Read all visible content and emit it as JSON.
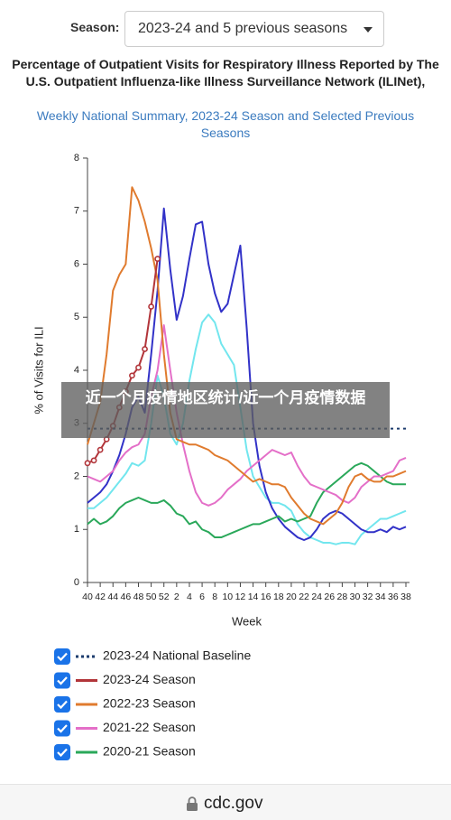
{
  "selector": {
    "label": "Season:",
    "value": "2023-24 and 5 previous seasons"
  },
  "chart_data": {
    "type": "line",
    "title": "Percentage of Outpatient Visits for Respiratory Illness Reported by The U.S. Outpatient Influenza-like Illness Surveillance Network (ILINet),",
    "subtitle": "Weekly National Summary, 2023-24 Season and Selected Previous Seasons",
    "x_label": "Week",
    "y_label": "% of Visits for ILI",
    "categories": [
      "40",
      null,
      "42",
      null,
      "44",
      null,
      "46",
      null,
      "48",
      null,
      "50",
      null,
      "52",
      null,
      "2",
      null,
      "4",
      null,
      "6",
      null,
      "8",
      null,
      "10",
      null,
      "12",
      null,
      "14",
      null,
      "16",
      null,
      "18",
      null,
      "20",
      null,
      "22",
      null,
      "24",
      null,
      "26",
      null,
      "28",
      null,
      "30",
      null,
      "32",
      null,
      "34",
      null,
      "36",
      null,
      "38"
    ],
    "ylim": [
      0,
      8
    ],
    "yticks": [
      0,
      1,
      2,
      3,
      4,
      5,
      6,
      7,
      8
    ],
    "series": [
      {
        "name": "2023-24 National Baseline",
        "color": "#1d3c6e",
        "dashed": true,
        "values": [
          2.9,
          2.9,
          2.9,
          2.9,
          2.9,
          2.9,
          2.9,
          2.9,
          2.9,
          2.9,
          2.9,
          2.9,
          2.9,
          2.9,
          2.9,
          2.9,
          2.9,
          2.9,
          2.9,
          2.9,
          2.9,
          2.9,
          2.9,
          2.9,
          2.9,
          2.9,
          2.9,
          2.9,
          2.9,
          2.9,
          2.9,
          2.9,
          2.9,
          2.9,
          2.9,
          2.9,
          2.9,
          2.9,
          2.9,
          2.9,
          2.9,
          2.9,
          2.9,
          2.9,
          2.9,
          2.9,
          2.9,
          2.9,
          2.9,
          2.9,
          2.9
        ]
      },
      {
        "name": "2023-24 Season",
        "color": "#b2353a",
        "markers": true,
        "values": [
          2.25,
          2.3,
          2.5,
          2.7,
          2.95,
          3.3,
          3.6,
          3.9,
          4.05,
          4.4,
          5.2,
          6.1,
          null,
          null,
          null,
          null,
          null,
          null,
          null,
          null,
          null,
          null,
          null,
          null,
          null,
          null,
          null,
          null,
          null,
          null,
          null,
          null,
          null,
          null,
          null,
          null,
          null,
          null,
          null,
          null,
          null,
          null,
          null,
          null,
          null,
          null,
          null,
          null,
          null,
          null,
          null
        ]
      },
      {
        "name": "2022-23 Season",
        "color": "#e07b2e",
        "values": [
          2.6,
          3.0,
          3.4,
          4.3,
          5.5,
          5.8,
          6.0,
          7.45,
          7.2,
          6.8,
          6.3,
          5.7,
          4.3,
          3.2,
          2.7,
          2.65,
          2.6,
          2.6,
          2.55,
          2.5,
          2.4,
          2.35,
          2.3,
          2.2,
          2.1,
          2.0,
          1.9,
          1.95,
          1.9,
          1.85,
          1.85,
          1.8,
          1.6,
          1.45,
          1.3,
          1.2,
          1.15,
          1.1,
          1.2,
          1.3,
          1.5,
          1.8,
          2.0,
          2.05,
          1.95,
          1.9,
          1.9,
          2.0,
          2.0,
          2.05,
          2.1
        ]
      },
      {
        "name": "2021-22 Season",
        "color": "#e46fc8",
        "values": [
          2.0,
          1.95,
          1.9,
          2.0,
          2.1,
          2.3,
          2.45,
          2.55,
          2.6,
          2.8,
          3.5,
          4.0,
          4.85,
          4.0,
          3.2,
          2.6,
          2.1,
          1.7,
          1.5,
          1.45,
          1.5,
          1.6,
          1.75,
          1.85,
          1.95,
          2.1,
          2.2,
          2.3,
          2.4,
          2.5,
          2.45,
          2.4,
          2.45,
          2.2,
          2.0,
          1.85,
          1.8,
          1.75,
          1.7,
          1.65,
          1.55,
          1.5,
          1.6,
          1.8,
          1.9,
          2.0,
          2.0,
          2.05,
          2.1,
          2.3,
          2.35
        ]
      },
      {
        "name": "2020-21 Season",
        "color": "#2aa85a",
        "values": [
          1.1,
          1.2,
          1.1,
          1.15,
          1.25,
          1.4,
          1.5,
          1.55,
          1.6,
          1.55,
          1.5,
          1.5,
          1.55,
          1.45,
          1.3,
          1.25,
          1.1,
          1.15,
          1.0,
          0.95,
          0.85,
          0.85,
          0.9,
          0.95,
          1.0,
          1.05,
          1.1,
          1.1,
          1.15,
          1.2,
          1.25,
          1.15,
          1.2,
          1.15,
          1.2,
          1.25,
          1.5,
          1.7,
          1.8,
          1.9,
          2.0,
          2.1,
          2.2,
          2.25,
          2.2,
          2.1,
          2.0,
          1.9,
          1.85,
          1.85,
          1.85
        ]
      },
      {
        "color": "#3232c8",
        "values": [
          1.5,
          1.6,
          1.7,
          1.85,
          2.1,
          2.4,
          2.8,
          3.3,
          3.5,
          3.2,
          4.3,
          5.5,
          7.05,
          5.9,
          4.95,
          5.4,
          6.1,
          6.75,
          6.8,
          6.0,
          5.45,
          5.1,
          5.25,
          5.8,
          6.35,
          4.8,
          3.0,
          2.2,
          1.7,
          1.4,
          1.2,
          1.05,
          0.95,
          0.85,
          0.8,
          0.85,
          1.0,
          1.2,
          1.3,
          1.35,
          1.3,
          1.2,
          1.1,
          1.0,
          0.95,
          0.95,
          1.0,
          0.95,
          1.05,
          1.0,
          1.05
        ]
      },
      {
        "color": "#72e6ee",
        "values": [
          1.4,
          1.4,
          1.5,
          1.6,
          1.75,
          1.9,
          2.05,
          2.25,
          2.2,
          2.3,
          3.0,
          3.9,
          3.5,
          2.8,
          2.6,
          3.0,
          3.8,
          4.4,
          4.9,
          5.05,
          4.9,
          4.5,
          4.3,
          4.1,
          3.3,
          2.5,
          2.0,
          1.8,
          1.6,
          1.5,
          1.5,
          1.45,
          1.35,
          1.1,
          0.95,
          0.85,
          0.8,
          0.75,
          0.75,
          0.72,
          0.75,
          0.75,
          0.72,
          0.9,
          1.0,
          1.1,
          1.2,
          1.2,
          1.25,
          1.3,
          1.35
        ]
      }
    ]
  },
  "watermark": "近一个月疫情地区统计/近一个月疫情数据",
  "footer": "cdc.gov"
}
